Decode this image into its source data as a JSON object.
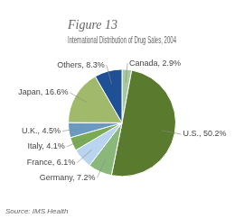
{
  "chart_data": {
    "type": "pie",
    "title": "Figure 13",
    "subtitle": "International Distribution of Drug Sales, 2004",
    "annotations": [
      "Source: IMS Health"
    ],
    "categories": [
      "Canada",
      "U.S.",
      "Germany",
      "France",
      "Italy",
      "U.K.",
      "Japan",
      "Others"
    ],
    "values": [
      2.9,
      50.2,
      7.2,
      6.1,
      4.1,
      4.5,
      16.6,
      8.3
    ],
    "colors": [
      "#a8c8a0",
      "#5a7a2e",
      "#8ab87a",
      "#b8d4ee",
      "#7aaa54",
      "#6a9ac0",
      "#a0b96a",
      "#1f5096"
    ],
    "data_labels": true,
    "value_labels": [
      "Canada, 2.9%",
      "U.S., 50.2%",
      "Germany, 7.2%",
      "France, 6.1%",
      "Italy, 4.1%",
      "U.K., 4.5%",
      "Japan, 16.6%",
      "Others, 8.3%"
    ]
  }
}
